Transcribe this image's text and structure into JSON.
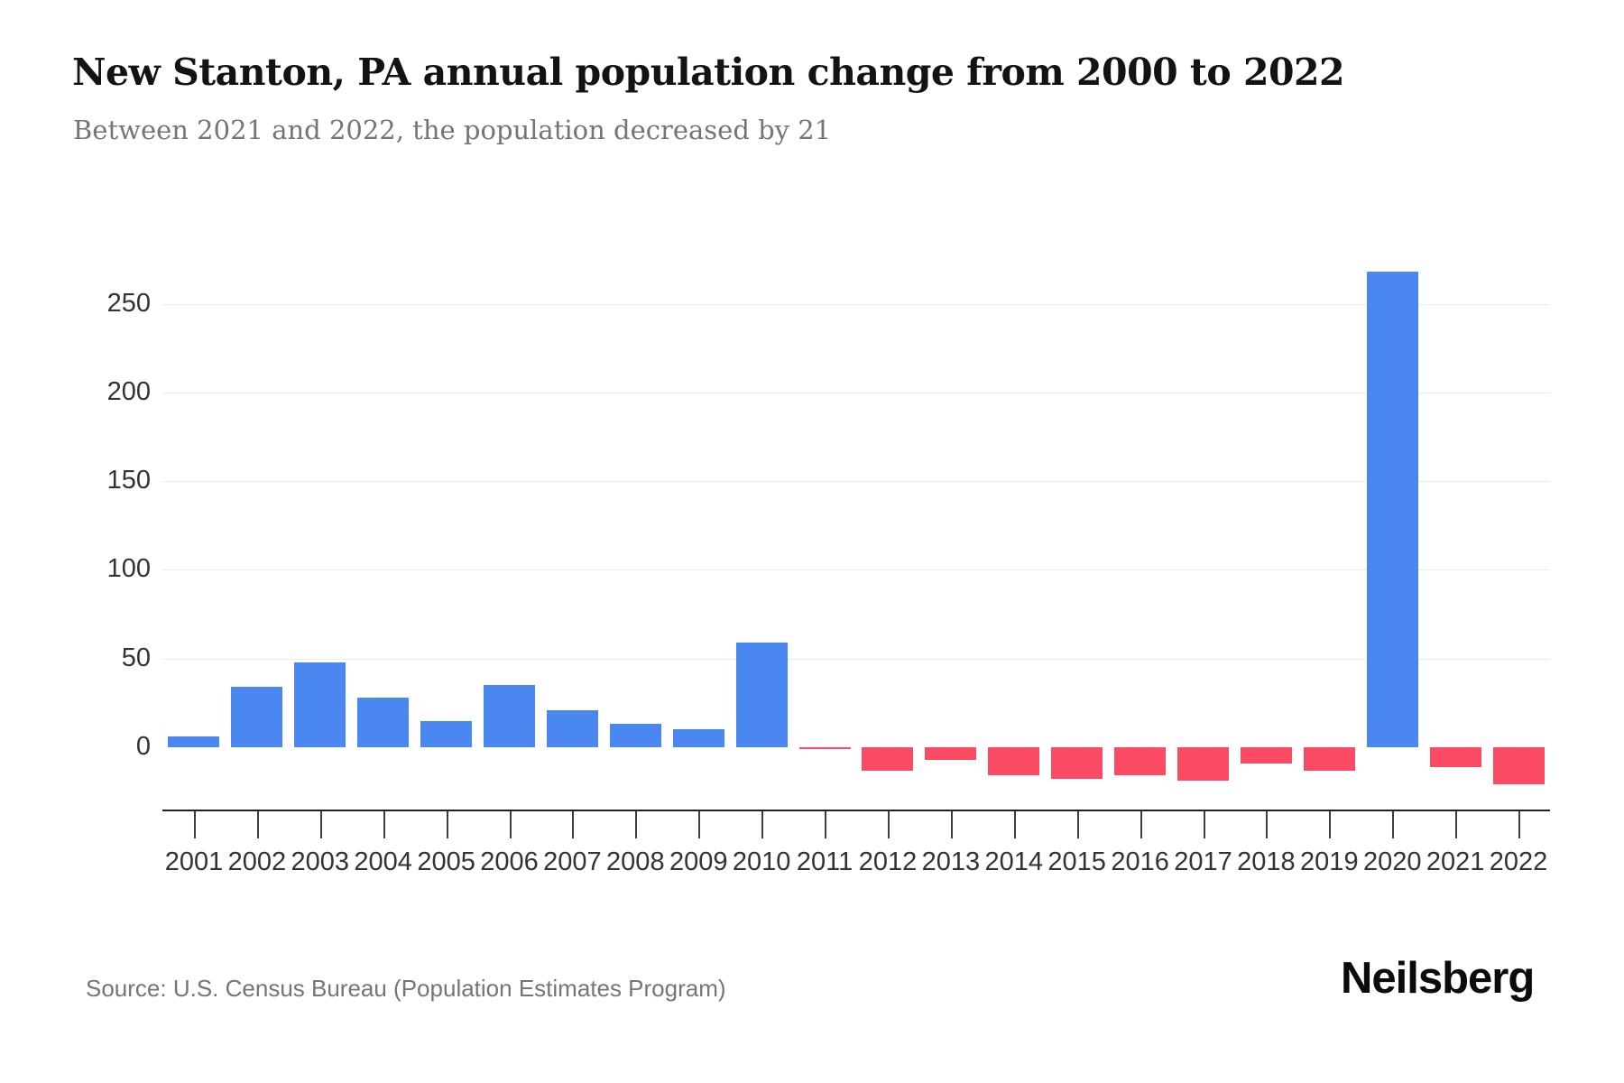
{
  "header": {
    "title": "New Stanton, PA annual population change from 2000 to 2022",
    "subtitle": "Between 2021 and 2022, the population decreased by 21"
  },
  "footer": {
    "source": "Source: U.S. Census Bureau (Population Estimates Program)",
    "brand": "Neilsberg"
  },
  "colors": {
    "positive_bar": "#4a87f0",
    "negative_bar": "#fa4a64",
    "gridline": "#ececec",
    "axis_line": "#222222",
    "tick": "#3d3d3d",
    "axis_label": "#333333",
    "title": "#131313",
    "subtitle": "#757575",
    "source": "#757575",
    "brand": "#0b0b0b",
    "background": "#ffffff"
  },
  "chart_data": {
    "type": "bar",
    "title": "New Stanton, PA annual population change from 2000 to 2022",
    "subtitle": "Between 2021 and 2022, the population decreased by 21",
    "xlabel": "",
    "ylabel": "",
    "categories": [
      "2001",
      "2002",
      "2003",
      "2004",
      "2005",
      "2006",
      "2007",
      "2008",
      "2009",
      "2010",
      "2011",
      "2012",
      "2013",
      "2014",
      "2015",
      "2016",
      "2017",
      "2018",
      "2019",
      "2020",
      "2021",
      "2022"
    ],
    "values": [
      6,
      34,
      48,
      28,
      15,
      35,
      21,
      13,
      10,
      59,
      -1,
      -13,
      -7,
      -16,
      -18,
      -16,
      -19,
      -9,
      -13,
      268,
      -11,
      -21
    ],
    "yticks": [
      0,
      50,
      100,
      150,
      200,
      250
    ],
    "ylim": [
      -36,
      305
    ],
    "grid": true,
    "legend": "none",
    "positive_color": "#4a87f0",
    "negative_color": "#fa4a64"
  }
}
